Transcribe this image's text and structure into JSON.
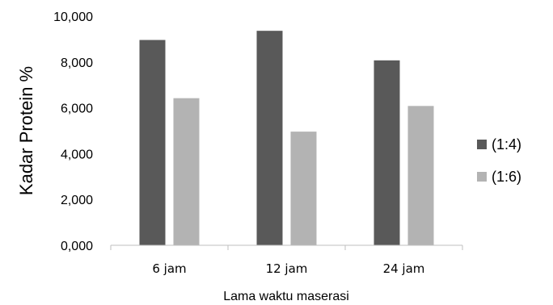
{
  "chart_data": {
    "type": "bar",
    "title": "",
    "xlabel": "Lama waktu maserasi",
    "ylabel": "Kadar Protein %",
    "ylim": [
      0,
      10
    ],
    "yticks": [
      {
        "value": 0,
        "label": "0,000"
      },
      {
        "value": 2,
        "label": "2,000"
      },
      {
        "value": 4,
        "label": "4,000"
      },
      {
        "value": 6,
        "label": "6,000"
      },
      {
        "value": 8,
        "label": "8,000"
      },
      {
        "value": 10,
        "label": "10,000"
      }
    ],
    "categories": [
      "6 jam",
      "12 jam",
      "24 jam"
    ],
    "series": [
      {
        "name": "(1:4)",
        "color": "#595959",
        "values": [
          8.96,
          9.36,
          8.07
        ]
      },
      {
        "name": "(1:6)",
        "color": "#b3b3b3",
        "values": [
          6.42,
          4.96,
          6.08
        ]
      }
    ],
    "grid": false,
    "legend_position": "right"
  }
}
